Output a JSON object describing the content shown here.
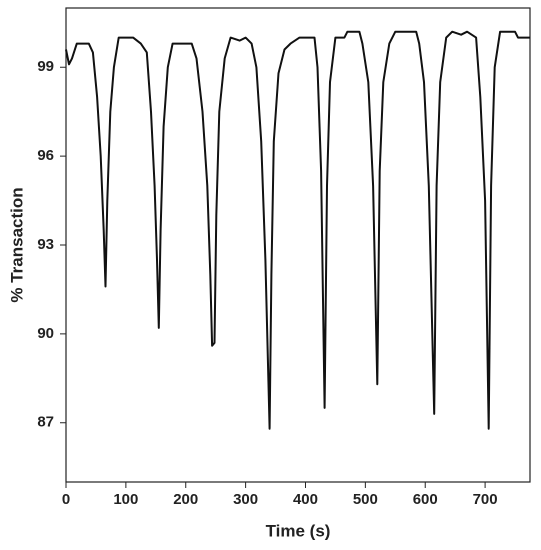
{
  "chart_data": {
    "type": "line",
    "x_label": "Time (s)",
    "y_label": "% Transaction",
    "x": [
      0,
      5,
      10,
      18,
      38,
      45,
      52,
      58,
      63,
      66,
      69,
      74,
      80,
      88,
      112,
      125,
      135,
      142,
      148,
      152,
      155,
      158,
      163,
      170,
      178,
      210,
      218,
      228,
      236,
      241,
      244,
      248,
      251,
      256,
      265,
      275,
      290,
      300,
      310,
      318,
      326,
      333,
      340,
      343,
      347,
      355,
      365,
      375,
      390,
      415,
      420,
      426,
      432,
      436,
      441,
      450,
      465,
      470,
      490,
      495,
      505,
      513,
      520,
      524,
      530,
      540,
      550,
      585,
      590,
      598,
      606,
      615,
      619,
      625,
      635,
      645,
      660,
      670,
      685,
      692,
      700,
      706,
      710,
      716,
      725,
      750,
      755,
      775
    ],
    "series": [
      {
        "color": "#111111",
        "values": [
          99.6,
          99.1,
          99.3,
          99.8,
          99.8,
          99.5,
          98.0,
          96.0,
          93.5,
          91.6,
          94.5,
          97.5,
          99.0,
          100.0,
          100.0,
          99.8,
          99.5,
          97.5,
          95.0,
          92.5,
          90.2,
          93.5,
          97.0,
          99.0,
          99.8,
          99.8,
          99.3,
          97.5,
          95.0,
          92.0,
          89.6,
          89.7,
          94.0,
          97.5,
          99.3,
          100.0,
          99.9,
          100.0,
          99.8,
          99.0,
          96.5,
          92.5,
          86.8,
          92.0,
          96.5,
          98.8,
          99.6,
          99.8,
          100.0,
          100.0,
          99.0,
          95.5,
          87.5,
          95.0,
          98.5,
          100.0,
          100.0,
          100.2,
          100.2,
          99.8,
          98.5,
          95.0,
          88.3,
          95.5,
          98.5,
          99.8,
          100.2,
          100.2,
          99.8,
          98.5,
          95.0,
          87.3,
          95.0,
          98.5,
          100.0,
          100.2,
          100.1,
          100.2,
          100.0,
          98.0,
          94.5,
          86.8,
          95.0,
          99.0,
          100.2,
          100.2,
          100.0,
          100.0
        ]
      }
    ],
    "xlim": [
      0,
      775
    ],
    "xticks": [
      0,
      100,
      200,
      300,
      400,
      500,
      600,
      700
    ],
    "ylim": [
      85,
      101
    ],
    "yticks": [
      87,
      90,
      93,
      96,
      99
    ]
  }
}
